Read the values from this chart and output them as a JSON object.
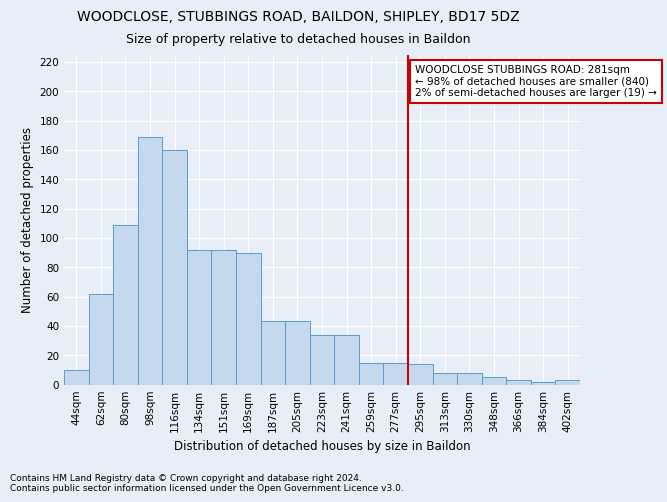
{
  "title": "WOODCLOSE, STUBBINGS ROAD, BAILDON, SHIPLEY, BD17 5DZ",
  "subtitle": "Size of property relative to detached houses in Baildon",
  "xlabel": "Distribution of detached houses by size in Baildon",
  "ylabel": "Number of detached properties",
  "footnote1": "Contains HM Land Registry data © Crown copyright and database right 2024.",
  "footnote2": "Contains public sector information licensed under the Open Government Licence v3.0.",
  "bar_labels": [
    "44sqm",
    "62sqm",
    "80sqm",
    "98sqm",
    "116sqm",
    "134sqm",
    "151sqm",
    "169sqm",
    "187sqm",
    "205sqm",
    "223sqm",
    "241sqm",
    "259sqm",
    "277sqm",
    "295sqm",
    "313sqm",
    "330sqm",
    "348sqm",
    "366sqm",
    "384sqm",
    "402sqm"
  ],
  "bar_values": [
    10,
    62,
    109,
    169,
    160,
    92,
    92,
    90,
    43,
    43,
    34,
    34,
    15,
    15,
    14,
    8,
    8,
    5,
    3,
    2,
    3
  ],
  "bar_color": "#c5d8ed",
  "bar_edge_color": "#5a9dc8",
  "annotation_text_line1": "WOODCLOSE STUBBINGS ROAD: 281sqm",
  "annotation_text_line2": "← 98% of detached houses are smaller (840)",
  "annotation_text_line3": "2% of semi-detached houses are larger (19) →",
  "annotation_box_color": "#ffffff",
  "annotation_border_color": "#cc0000",
  "vline_color": "#cc0000",
  "ylim": [
    0,
    225
  ],
  "yticks": [
    0,
    20,
    40,
    60,
    80,
    100,
    120,
    140,
    160,
    180,
    200,
    220
  ],
  "bg_color": "#e8eef7",
  "grid_color": "#ffffff",
  "title_fontsize": 10,
  "subtitle_fontsize": 9,
  "axis_label_fontsize": 8.5,
  "tick_fontsize": 7.5,
  "footnote_fontsize": 6.5
}
